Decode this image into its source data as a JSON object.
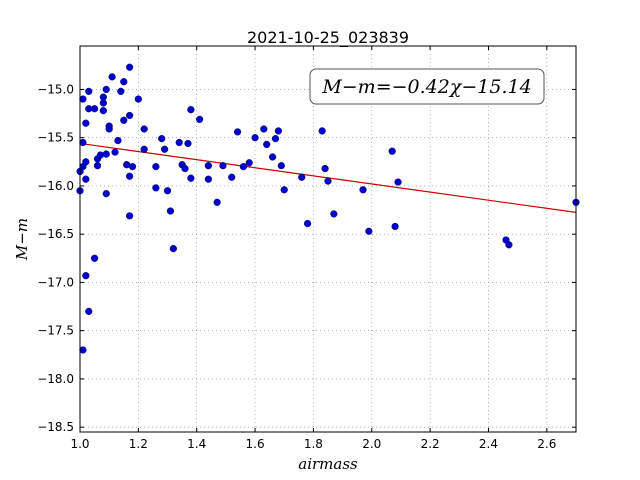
{
  "chart_data": {
    "type": "scatter",
    "title": "2021-10-25_023839",
    "xlabel": "airmass",
    "ylabel": "M−m",
    "xlim": [
      1.0,
      2.7
    ],
    "ylim": [
      -18.55,
      -14.55
    ],
    "y_inverted": true,
    "grid": true,
    "xticks": [
      1.0,
      1.2,
      1.4,
      1.6,
      1.8,
      2.0,
      2.2,
      2.4,
      2.6
    ],
    "xtick_labels": [
      "1.0",
      "1.2",
      "1.4",
      "1.6",
      "1.8",
      "2.0",
      "2.2",
      "2.4",
      "2.6"
    ],
    "yticks": [
      -15.0,
      -15.5,
      -16.0,
      -16.5,
      -17.0,
      -17.5,
      -18.0,
      -18.5
    ],
    "ytick_labels": [
      "−15.0",
      "−15.5",
      "−16.0",
      "−16.5",
      "−17.0",
      "−17.5",
      "−18.0",
      "−18.5"
    ],
    "annotation": "M−m=−0.42χ−15.14",
    "fit": {
      "slope": -0.42,
      "intercept": -15.14
    },
    "colors": {
      "points": "#0000cc",
      "fit_line": "#cc0000",
      "grid": "#888888"
    },
    "points": [
      [
        1.0,
        -15.85
      ],
      [
        1.0,
        -16.05
      ],
      [
        1.01,
        -15.1
      ],
      [
        1.01,
        -17.7
      ],
      [
        1.01,
        -15.55
      ],
      [
        1.01,
        -15.8
      ],
      [
        1.02,
        -15.35
      ],
      [
        1.02,
        -15.75
      ],
      [
        1.02,
        -15.93
      ],
      [
        1.02,
        -16.93
      ],
      [
        1.03,
        -15.2
      ],
      [
        1.03,
        -15.02
      ],
      [
        1.03,
        -17.3
      ],
      [
        1.05,
        -15.2
      ],
      [
        1.05,
        -16.75
      ],
      [
        1.06,
        -15.72
      ],
      [
        1.06,
        -15.79
      ],
      [
        1.07,
        -15.68
      ],
      [
        1.08,
        -15.22
      ],
      [
        1.08,
        -15.14
      ],
      [
        1.08,
        -15.08
      ],
      [
        1.09,
        -15.0
      ],
      [
        1.09,
        -16.08
      ],
      [
        1.09,
        -15.67
      ],
      [
        1.1,
        -15.38
      ],
      [
        1.1,
        -15.41
      ],
      [
        1.11,
        -14.87
      ],
      [
        1.12,
        -15.65
      ],
      [
        1.13,
        -15.53
      ],
      [
        1.14,
        -15.02
      ],
      [
        1.15,
        -14.92
      ],
      [
        1.15,
        -15.32
      ],
      [
        1.16,
        -15.78
      ],
      [
        1.17,
        -16.31
      ],
      [
        1.17,
        -15.27
      ],
      [
        1.17,
        -15.9
      ],
      [
        1.17,
        -14.77
      ],
      [
        1.18,
        -15.8
      ],
      [
        1.2,
        -15.1
      ],
      [
        1.22,
        -15.41
      ],
      [
        1.22,
        -15.62
      ],
      [
        1.26,
        -15.8
      ],
      [
        1.26,
        -16.02
      ],
      [
        1.28,
        -15.51
      ],
      [
        1.29,
        -15.62
      ],
      [
        1.3,
        -16.05
      ],
      [
        1.31,
        -16.26
      ],
      [
        1.32,
        -16.65
      ],
      [
        1.34,
        -15.55
      ],
      [
        1.35,
        -15.78
      ],
      [
        1.36,
        -15.82
      ],
      [
        1.37,
        -15.56
      ],
      [
        1.38,
        -15.21
      ],
      [
        1.38,
        -15.92
      ],
      [
        1.41,
        -15.31
      ],
      [
        1.44,
        -15.79
      ],
      [
        1.44,
        -15.93
      ],
      [
        1.47,
        -16.17
      ],
      [
        1.49,
        -15.79
      ],
      [
        1.52,
        -15.91
      ],
      [
        1.54,
        -15.44
      ],
      [
        1.56,
        -15.8
      ],
      [
        1.58,
        -15.76
      ],
      [
        1.6,
        -15.5
      ],
      [
        1.63,
        -15.41
      ],
      [
        1.64,
        -15.57
      ],
      [
        1.66,
        -15.7
      ],
      [
        1.67,
        -15.51
      ],
      [
        1.68,
        -15.43
      ],
      [
        1.69,
        -15.79
      ],
      [
        1.7,
        -16.04
      ],
      [
        1.76,
        -15.91
      ],
      [
        1.78,
        -16.39
      ],
      [
        1.83,
        -15.43
      ],
      [
        1.84,
        -15.82
      ],
      [
        1.85,
        -15.95
      ],
      [
        1.87,
        -16.29
      ],
      [
        1.97,
        -16.04
      ],
      [
        1.99,
        -16.47
      ],
      [
        2.07,
        -15.64
      ],
      [
        2.08,
        -16.42
      ],
      [
        2.09,
        -15.96
      ],
      [
        2.46,
        -16.56
      ],
      [
        2.47,
        -16.61
      ],
      [
        2.7,
        -16.17
      ]
    ]
  }
}
